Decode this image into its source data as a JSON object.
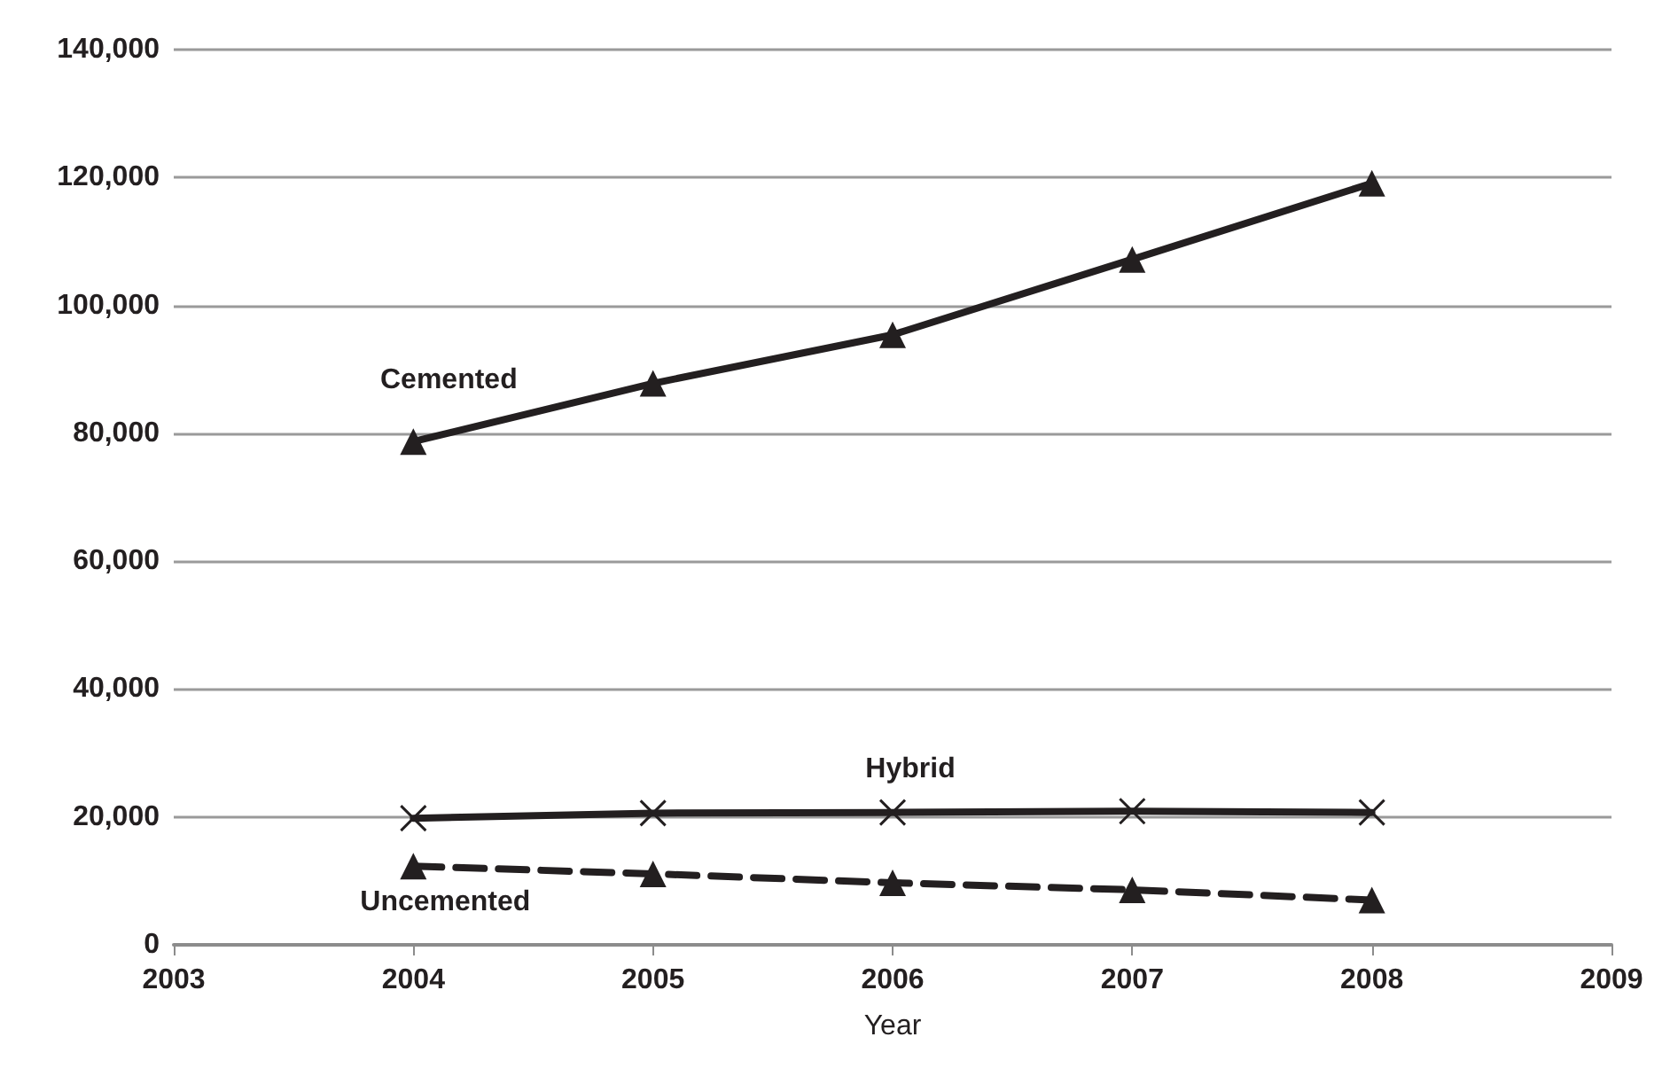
{
  "chart_data": {
    "type": "line",
    "xlabel": "Year",
    "x": [
      2004,
      2005,
      2006,
      2007,
      2008
    ],
    "xlim": [
      2003,
      2009
    ],
    "xticks": [
      2003,
      2004,
      2005,
      2006,
      2007,
      2008,
      2009
    ],
    "ylim": [
      0,
      140000
    ],
    "yticks": [
      {
        "value": 0,
        "label": "0"
      },
      {
        "value": 20000,
        "label": "20,000"
      },
      {
        "value": 40000,
        "label": "40,000"
      },
      {
        "value": 60000,
        "label": "60,000"
      },
      {
        "value": 80000,
        "label": "80,000"
      },
      {
        "value": 100000,
        "label": "100,000"
      },
      {
        "value": 120000,
        "label": "120,000"
      },
      {
        "value": 140000,
        "label": "140,000"
      }
    ],
    "grid": "y",
    "legend": false,
    "series": [
      {
        "name": "Cemented",
        "color": "#231f20",
        "marker": "triangle",
        "line_style": "solid",
        "values": [
          78700,
          87800,
          95400,
          107200,
          119100
        ]
      },
      {
        "name": "Hybrid",
        "color": "#231f20",
        "marker": "cross",
        "line_style": "solid",
        "values": [
          19800,
          20600,
          20700,
          20900,
          20700
        ]
      },
      {
        "name": "Uncemented",
        "color": "#231f20",
        "marker": "triangle",
        "line_style": "dashed",
        "values": [
          12300,
          11100,
          9700,
          8600,
          7000
        ]
      }
    ]
  }
}
